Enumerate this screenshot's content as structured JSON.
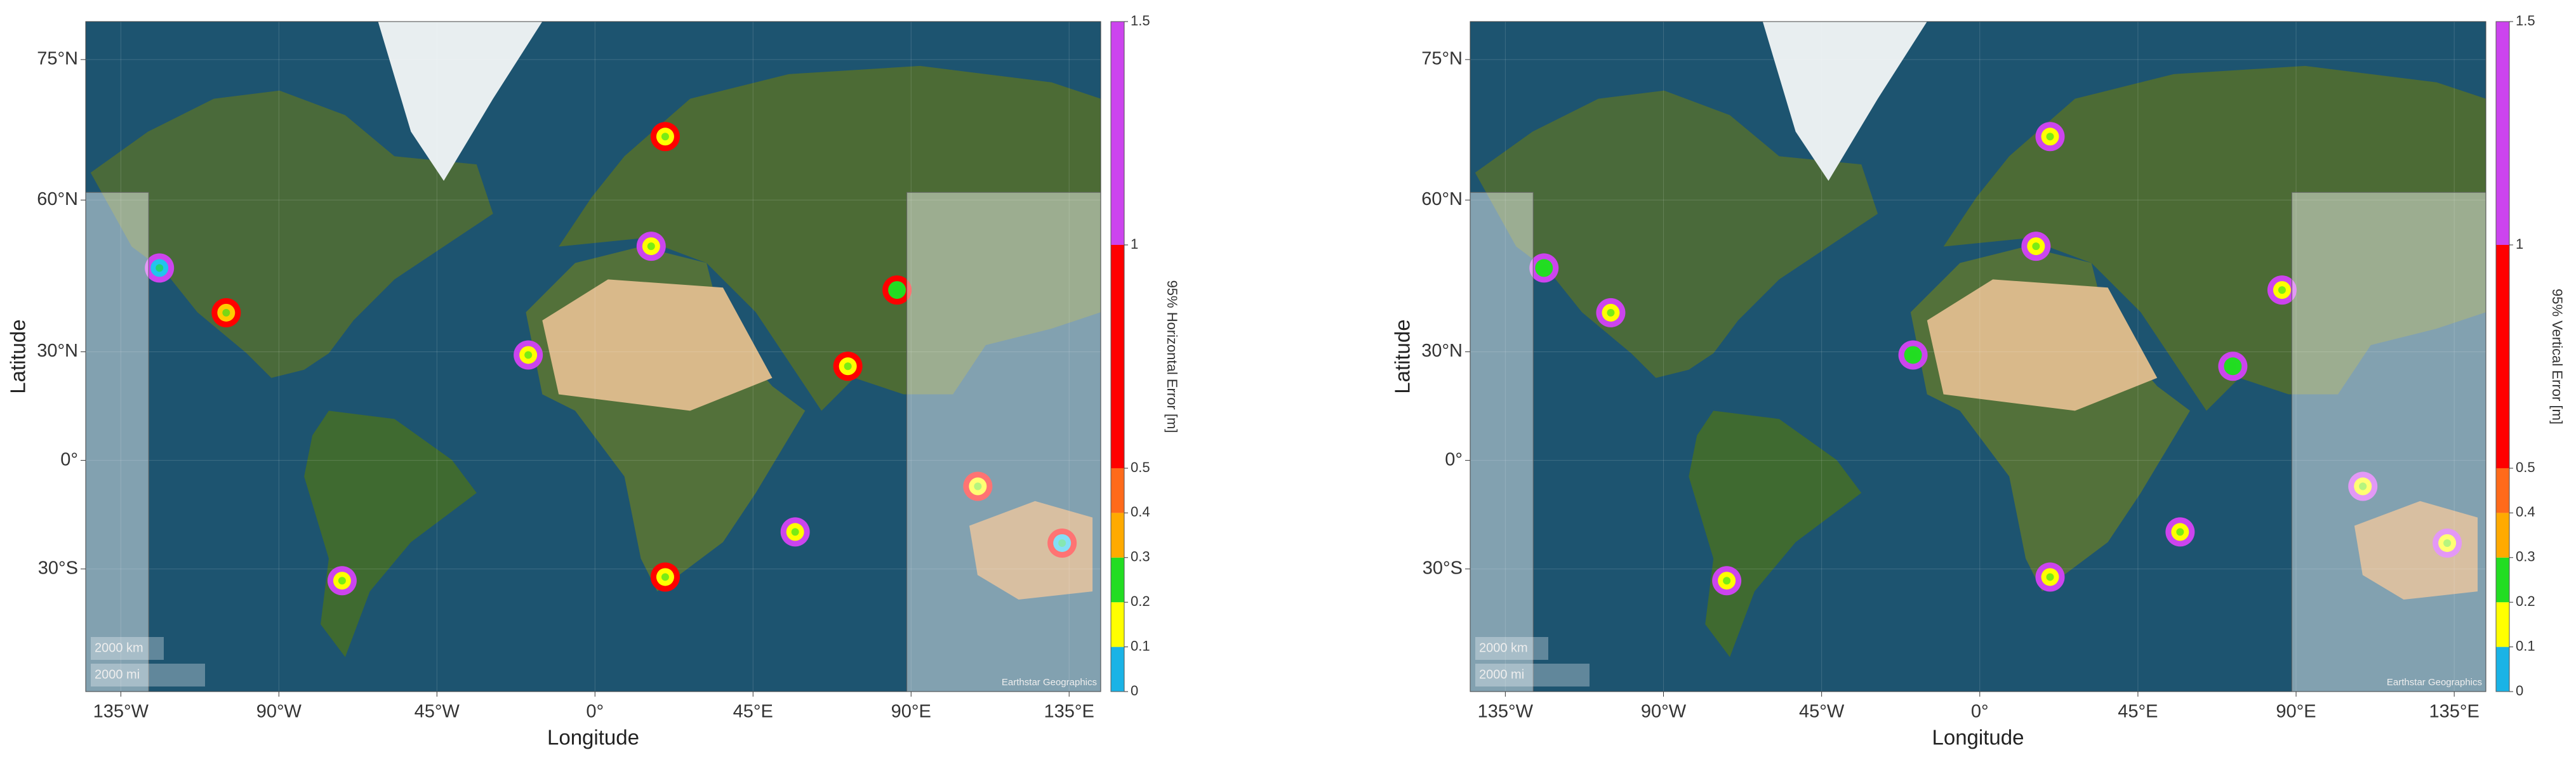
{
  "chart_data": [
    {
      "type": "geoscatter",
      "x_label": "Longitude",
      "y_label": "Latitude",
      "y_scale": "mercator",
      "xlim": [
        -145,
        144
      ],
      "ylim": [
        -55.5,
        77.6
      ],
      "xticks": [
        {
          "value": -135,
          "label": "135°W"
        },
        {
          "value": -90,
          "label": "90°W"
        },
        {
          "value": -45,
          "label": "45°W"
        },
        {
          "value": 0,
          "label": "0°"
        },
        {
          "value": 45,
          "label": "45°E"
        },
        {
          "value": 90,
          "label": "90°E"
        },
        {
          "value": 135,
          "label": "135°E"
        }
      ],
      "yticks": [
        {
          "value": 75,
          "label": "75°N"
        },
        {
          "value": 60,
          "label": "60°N"
        },
        {
          "value": 30,
          "label": "30°N"
        },
        {
          "value": 0,
          "label": "0°"
        },
        {
          "value": -30,
          "label": "30°S"
        }
      ],
      "x": [
        -124,
        -105,
        20,
        16,
        -19,
        86,
        72,
        109,
        133,
        57,
        20,
        -72
      ],
      "values": [
        48.6,
        39.3,
        68,
        52.6,
        29.2,
        44.2,
        26.3,
        -7.5,
        -23.3,
        -20.3,
        -32,
        -32.9
      ],
      "ring_colors": [
        "#cc44ee",
        "#ff0000",
        "#ff0000",
        "#cc44ee",
        "#cc44ee",
        "#ff0000",
        "#ff0000",
        "#ff0000",
        "#ff0000",
        "#cc44ee",
        "#ff0000",
        "#cc44ee"
      ],
      "center_colors": [
        "#22c3ee",
        "#ffcc00",
        "#ffff00",
        "#ffff00",
        "#ffff00",
        "#22dd22",
        "#ffff00",
        "#ffff00",
        "#22c3ee",
        "#ffff00",
        "#ffff00",
        "#ffff00"
      ],
      "scale_bar": [
        "2000 km",
        "2000 mi"
      ],
      "attribution": "Earthstar Geographics",
      "colorbar": {
        "label": "95% Horizontal Error [m]",
        "lim": [
          0,
          1.5
        ],
        "ticks": [
          0,
          0.1,
          0.2,
          0.3,
          0.4,
          0.5,
          1,
          1.5
        ],
        "colors": [
          "#1ab3e6",
          "#ffff00",
          "#22dd22",
          "#ffaa00",
          "#ff6a1a",
          "#ff0000",
          "#cc44ee"
        ]
      }
    },
    {
      "type": "geoscatter",
      "x_label": "Longitude",
      "y_label": "Latitude",
      "y_scale": "mercator",
      "xlim": [
        -145,
        144
      ],
      "ylim": [
        -55.5,
        77.6
      ],
      "xticks": [
        {
          "value": -135,
          "label": "135°W"
        },
        {
          "value": -90,
          "label": "90°W"
        },
        {
          "value": -45,
          "label": "45°W"
        },
        {
          "value": 0,
          "label": "0°"
        },
        {
          "value": 45,
          "label": "45°E"
        },
        {
          "value": 90,
          "label": "90°E"
        },
        {
          "value": 135,
          "label": "135°E"
        }
      ],
      "yticks": [
        {
          "value": 75,
          "label": "75°N"
        },
        {
          "value": 60,
          "label": "60°N"
        },
        {
          "value": 30,
          "label": "30°N"
        },
        {
          "value": 0,
          "label": "0°"
        },
        {
          "value": -30,
          "label": "30°S"
        }
      ],
      "x": [
        -124,
        -105,
        20,
        16,
        -19,
        86,
        72,
        109,
        133,
        57,
        20,
        -72
      ],
      "values": [
        48.6,
        39.3,
        68,
        52.6,
        29.2,
        44.2,
        26.3,
        -7.5,
        -23.3,
        -20.3,
        -32,
        -32.9
      ],
      "ring_colors": [
        "#cc44ee",
        "#cc44ee",
        "#cc44ee",
        "#cc44ee",
        "#cc44ee",
        "#cc44ee",
        "#cc44ee",
        "#cc44ee",
        "#cc44ee",
        "#cc44ee",
        "#cc44ee",
        "#cc44ee"
      ],
      "center_colors": [
        "#22dd22",
        "#ffff00",
        "#ffff00",
        "#ffff00",
        "#22dd22",
        "#ffff00",
        "#22dd22",
        "#ffff00",
        "#ffff00",
        "#ffff00",
        "#ffff00",
        "#ffff00"
      ],
      "scale_bar": [
        "2000 km",
        "2000 mi"
      ],
      "attribution": "Earthstar Geographics",
      "colorbar": {
        "label": "95% Vertical Error [m]",
        "lim": [
          0,
          1.5
        ],
        "ticks": [
          0,
          0.1,
          0.2,
          0.3,
          0.4,
          0.5,
          1,
          1.5
        ],
        "colors": [
          "#1ab3e6",
          "#ffff00",
          "#22dd22",
          "#ffaa00",
          "#ff6a1a",
          "#ff0000",
          "#cc44ee"
        ]
      }
    }
  ]
}
